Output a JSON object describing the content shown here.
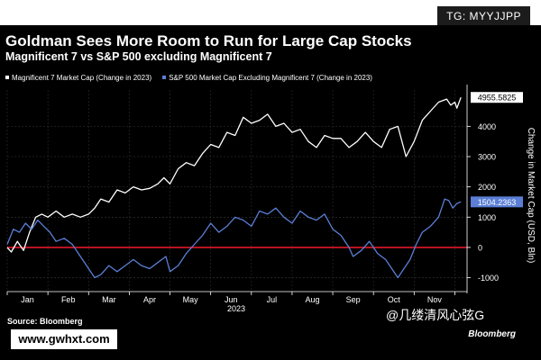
{
  "header": {
    "tag": "TG: MYYJJPP"
  },
  "chart_data": {
    "type": "line",
    "title": "Goldman Sees More Room to Run for Large Cap Stocks",
    "subtitle": "Magnificent 7 vs S&P 500 excluding Magnificent 7",
    "xlabel": "2023",
    "ylabel": "Change in Market Cap (USD, Bln)",
    "x_ticks": [
      "Jan",
      "Feb",
      "Mar",
      "Apr",
      "May",
      "Jun",
      "Jul",
      "Aug",
      "Sep",
      "Oct",
      "Nov"
    ],
    "y_ticks": [
      -1000,
      0,
      1000,
      2000,
      3000,
      4000
    ],
    "ylim": [
      -1400,
      5200
    ],
    "x_domain": [
      0,
      11.3
    ],
    "reference_line": 0,
    "series": [
      {
        "name": "Magnificent 7 Market Cap (Change in 2023)",
        "color": "#ffffff",
        "last_value_label": "4955.5825",
        "values": [
          [
            0,
            0
          ],
          [
            0.1,
            -150
          ],
          [
            0.25,
            200
          ],
          [
            0.4,
            -100
          ],
          [
            0.55,
            500
          ],
          [
            0.7,
            1000
          ],
          [
            0.85,
            1100
          ],
          [
            1.0,
            1000
          ],
          [
            1.2,
            1200
          ],
          [
            1.4,
            1000
          ],
          [
            1.6,
            1100
          ],
          [
            1.8,
            1000
          ],
          [
            2.0,
            1100
          ],
          [
            2.15,
            1300
          ],
          [
            2.3,
            1600
          ],
          [
            2.5,
            1500
          ],
          [
            2.7,
            1900
          ],
          [
            2.9,
            1800
          ],
          [
            3.1,
            2000
          ],
          [
            3.3,
            1900
          ],
          [
            3.5,
            1950
          ],
          [
            3.7,
            2100
          ],
          [
            3.85,
            2300
          ],
          [
            4.0,
            2100
          ],
          [
            4.2,
            2600
          ],
          [
            4.4,
            2800
          ],
          [
            4.6,
            2700
          ],
          [
            4.8,
            3100
          ],
          [
            5.0,
            3400
          ],
          [
            5.2,
            3300
          ],
          [
            5.4,
            3800
          ],
          [
            5.6,
            3700
          ],
          [
            5.8,
            4300
          ],
          [
            6.0,
            4100
          ],
          [
            6.2,
            4200
          ],
          [
            6.4,
            4400
          ],
          [
            6.6,
            4000
          ],
          [
            6.8,
            4100
          ],
          [
            7.0,
            3800
          ],
          [
            7.2,
            3900
          ],
          [
            7.4,
            3500
          ],
          [
            7.6,
            3300
          ],
          [
            7.8,
            3700
          ],
          [
            8.0,
            3600
          ],
          [
            8.2,
            3600
          ],
          [
            8.4,
            3300
          ],
          [
            8.6,
            3500
          ],
          [
            8.8,
            3800
          ],
          [
            9.0,
            3500
          ],
          [
            9.2,
            3300
          ],
          [
            9.4,
            3900
          ],
          [
            9.6,
            4000
          ],
          [
            9.8,
            3000
          ],
          [
            10.0,
            3500
          ],
          [
            10.2,
            4200
          ],
          [
            10.4,
            4500
          ],
          [
            10.6,
            4800
          ],
          [
            10.8,
            4900
          ],
          [
            10.9,
            4700
          ],
          [
            11.0,
            4800
          ],
          [
            11.05,
            4600
          ],
          [
            11.15,
            4955.5825
          ]
        ]
      },
      {
        "name": "S&P 500 Market Cap Excluding Magnificent 7 (Change in 2023)",
        "color": "#5b7fd6",
        "last_value_label": "1504.2363",
        "values": [
          [
            0,
            100
          ],
          [
            0.15,
            600
          ],
          [
            0.3,
            500
          ],
          [
            0.45,
            800
          ],
          [
            0.6,
            600
          ],
          [
            0.75,
            900
          ],
          [
            0.9,
            700
          ],
          [
            1.05,
            500
          ],
          [
            1.2,
            200
          ],
          [
            1.4,
            300
          ],
          [
            1.6,
            100
          ],
          [
            1.8,
            -300
          ],
          [
            2.0,
            -700
          ],
          [
            2.15,
            -1000
          ],
          [
            2.3,
            -900
          ],
          [
            2.5,
            -600
          ],
          [
            2.7,
            -800
          ],
          [
            2.9,
            -600
          ],
          [
            3.1,
            -400
          ],
          [
            3.3,
            -600
          ],
          [
            3.5,
            -700
          ],
          [
            3.7,
            -500
          ],
          [
            3.9,
            -300
          ],
          [
            4.0,
            -800
          ],
          [
            4.2,
            -600
          ],
          [
            4.4,
            -200
          ],
          [
            4.6,
            100
          ],
          [
            4.8,
            400
          ],
          [
            5.0,
            800
          ],
          [
            5.2,
            500
          ],
          [
            5.4,
            700
          ],
          [
            5.6,
            1000
          ],
          [
            5.8,
            900
          ],
          [
            6.0,
            700
          ],
          [
            6.2,
            1200
          ],
          [
            6.4,
            1100
          ],
          [
            6.6,
            1300
          ],
          [
            6.8,
            1000
          ],
          [
            7.0,
            800
          ],
          [
            7.2,
            1200
          ],
          [
            7.4,
            1000
          ],
          [
            7.6,
            900
          ],
          [
            7.8,
            1100
          ],
          [
            8.0,
            600
          ],
          [
            8.2,
            400
          ],
          [
            8.4,
            0
          ],
          [
            8.5,
            -300
          ],
          [
            8.7,
            -100
          ],
          [
            8.9,
            200
          ],
          [
            9.1,
            -200
          ],
          [
            9.3,
            -400
          ],
          [
            9.45,
            -700
          ],
          [
            9.6,
            -1000
          ],
          [
            9.75,
            -700
          ],
          [
            9.9,
            -400
          ],
          [
            10.05,
            100
          ],
          [
            10.2,
            500
          ],
          [
            10.4,
            700
          ],
          [
            10.6,
            1000
          ],
          [
            10.75,
            1600
          ],
          [
            10.85,
            1550
          ],
          [
            10.95,
            1300
          ],
          [
            11.05,
            1450
          ],
          [
            11.15,
            1504.2363
          ]
        ]
      }
    ]
  },
  "footer": {
    "source": "Source: Bloomberg",
    "brand": "Bloomberg",
    "watermark": "@几缕清风心弦G",
    "url": "www.gwhxt.com"
  }
}
